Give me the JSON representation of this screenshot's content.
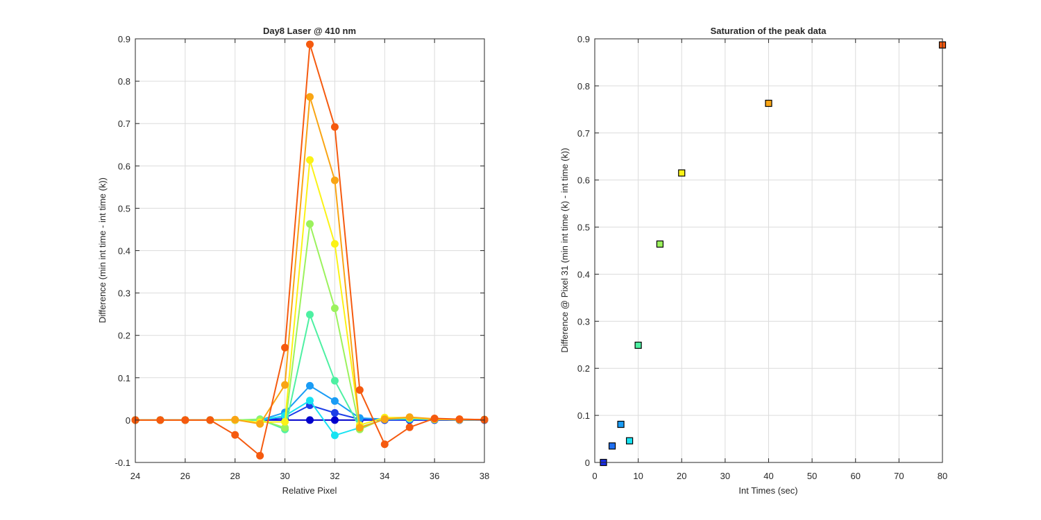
{
  "chart_data": [
    {
      "type": "line",
      "title": "Day8 Laser @ 410 nm",
      "xlabel": "Relative Pixel",
      "ylabel": "Difference (min int time - int time (k))",
      "xlim": [
        24,
        38
      ],
      "ylim": [
        -0.1,
        0.9
      ],
      "xticks": [
        "24",
        "26",
        "28",
        "30",
        "32",
        "34",
        "36",
        "38"
      ],
      "yticks": [
        "-0.1",
        "0",
        "0.1",
        "0.2",
        "0.3",
        "0.4",
        "0.5",
        "0.6",
        "0.7",
        "0.8",
        "0.9"
      ],
      "grid": true,
      "marker": "circle",
      "x": [
        24,
        25,
        26,
        27,
        28,
        29,
        30,
        31,
        32,
        33,
        34,
        35,
        36,
        37,
        38
      ],
      "series": [
        {
          "color": "#0000cc",
          "values": [
            0,
            0,
            0,
            0,
            0,
            0,
            0,
            0,
            0,
            0,
            0,
            0,
            0,
            0,
            0
          ]
        },
        {
          "color": "#1d3ee8",
          "values": [
            0,
            0,
            0,
            0,
            0,
            0,
            0.005,
            0.035,
            0.017,
            0.002,
            0,
            0.001,
            0.001,
            0.001,
            0.001
          ]
        },
        {
          "color": "#1a9cf5",
          "values": [
            0,
            0,
            0,
            0,
            0,
            0,
            0.018,
            0.081,
            0.045,
            0.005,
            0.002,
            0.002,
            0.001,
            0.001,
            0.001
          ]
        },
        {
          "color": "#17e3f2",
          "values": [
            0,
            0,
            0,
            0,
            0,
            0,
            0.01,
            0.046,
            -0.036,
            -0.018,
            0.002,
            0.004,
            0.002,
            0.001,
            0.001
          ]
        },
        {
          "color": "#4df0a2",
          "values": [
            0,
            0,
            0,
            0,
            0,
            0.002,
            -0.022,
            0.249,
            0.093,
            -0.017,
            0.002,
            0.004,
            0.002,
            0.001,
            0.001
          ]
        },
        {
          "color": "#9bf25c",
          "values": [
            0,
            0,
            0,
            0,
            0,
            0.001,
            -0.018,
            0.463,
            0.264,
            -0.022,
            0.004,
            0.005,
            0.002,
            0.001,
            0.001
          ]
        },
        {
          "color": "#fbf216",
          "values": [
            0,
            0,
            0,
            0,
            0,
            -0.005,
            -0.004,
            0.614,
            0.416,
            -0.012,
            0.006,
            0.006,
            0.002,
            0.001,
            0.001
          ]
        },
        {
          "color": "#f9a514",
          "values": [
            0,
            0,
            0,
            0,
            0.001,
            -0.009,
            0.083,
            0.763,
            0.566,
            -0.018,
            0.002,
            0.007,
            0.003,
            0.002,
            0.001
          ]
        },
        {
          "color": "#f55a0f",
          "values": [
            0,
            0,
            0,
            0,
            -0.035,
            -0.084,
            0.171,
            0.887,
            0.692,
            0.071,
            -0.057,
            -0.017,
            0.004,
            0.002,
            0.001
          ]
        }
      ]
    },
    {
      "type": "scatter",
      "title": "Saturation of the peak data",
      "xlabel": "Int Times (sec)",
      "ylabel": "Difference @ Pixel 31 (min int time (k) - int time (k))",
      "xlim": [
        0,
        80
      ],
      "ylim": [
        0,
        0.9
      ],
      "xticks": [
        "0",
        "10",
        "20",
        "30",
        "40",
        "50",
        "60",
        "70",
        "80"
      ],
      "yticks": [
        "0",
        "0.1",
        "0.2",
        "0.3",
        "0.4",
        "0.5",
        "0.6",
        "0.7",
        "0.8",
        "0.9"
      ],
      "grid": true,
      "marker": "square",
      "points": [
        {
          "x": 2,
          "y": 0,
          "color": "#1a2ee8"
        },
        {
          "x": 4,
          "y": 0.035,
          "color": "#1f6ff0"
        },
        {
          "x": 6,
          "y": 0.081,
          "color": "#1a9cf5"
        },
        {
          "x": 8,
          "y": 0.046,
          "color": "#17e3f2"
        },
        {
          "x": 10,
          "y": 0.249,
          "color": "#4df0a2"
        },
        {
          "x": 15,
          "y": 0.464,
          "color": "#9bf25c"
        },
        {
          "x": 20,
          "y": 0.615,
          "color": "#fbf216"
        },
        {
          "x": 40,
          "y": 0.763,
          "color": "#f9a514"
        },
        {
          "x": 80,
          "y": 0.887,
          "color": "#f55a0f"
        }
      ]
    }
  ]
}
